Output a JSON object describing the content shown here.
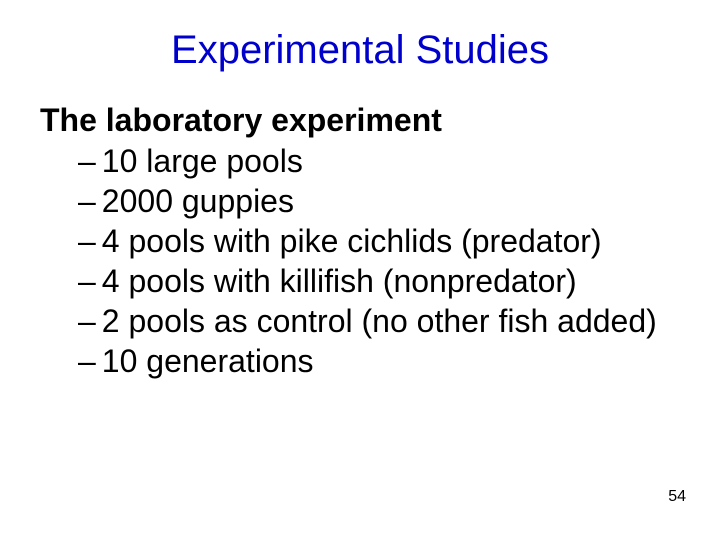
{
  "slide": {
    "title": "Experimental Studies",
    "title_color": "#0000cc",
    "heading": "The laboratory experiment",
    "bullets": [
      "10 large pools",
      "2000 guppies",
      "4 pools with pike cichlids (predator)",
      "4 pools with killifish (nonpredator)",
      "2 pools as control (no other fish added)",
      "10 generations"
    ],
    "dash_glyph": "–",
    "page_number": "54",
    "background_color": "#ffffff",
    "text_color": "#000000",
    "title_fontsize": 40,
    "body_fontsize": 32,
    "pagenum_fontsize": 16
  }
}
